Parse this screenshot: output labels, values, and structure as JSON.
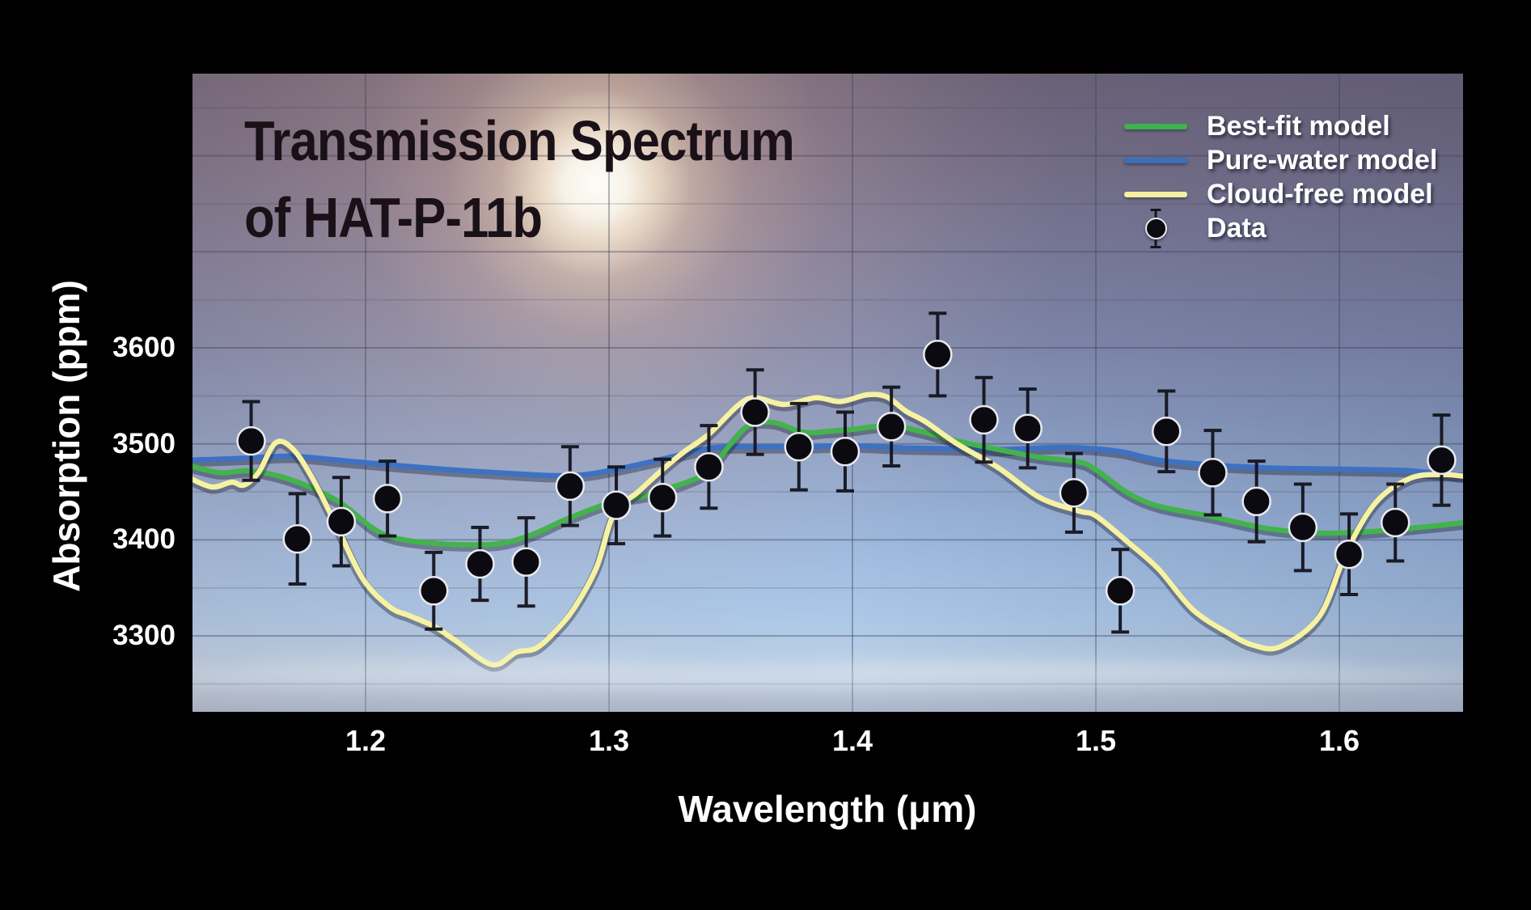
{
  "title": {
    "line1": "Transmission Spectrum",
    "line2": "of HAT-P-11b"
  },
  "legend": {
    "items": [
      {
        "label": "Best-fit model",
        "type": "line",
        "color": "#3fb24b"
      },
      {
        "label": "Pure-water model",
        "type": "line",
        "color": "#3c6fb5"
      },
      {
        "label": "Cloud-free model",
        "type": "line",
        "color": "#f4efa2"
      },
      {
        "label": "Data",
        "type": "marker",
        "color": "#0b0b10"
      }
    ]
  },
  "colors": {
    "grid": "#3c4258",
    "error_bar": "#14141f",
    "point_fill": "#0a0a10",
    "point_ring": "#e9e9ef",
    "best_fit": "#43b34c",
    "pure_water": "#3d71c4",
    "cloud_free": "#f7f2a2",
    "text_light": "#ffffff",
    "title_dark": "#1a1118"
  },
  "chart_data": {
    "type": "line",
    "title": "Transmission Spectrum of HAT-P-11b",
    "xlabel": "Wavelength (μm)",
    "ylabel": "Absorption (ppm)",
    "xlim": [
      1.128,
      1.652
    ],
    "ylim": [
      3220,
      3886
    ],
    "x_ticks": [
      1.2,
      1.3,
      1.4,
      1.5,
      1.6
    ],
    "y_ticks": [
      3600,
      3500,
      3400,
      3300
    ],
    "grid": "on, every 50 ppm horizontal (faint) and 0.1 um vertical",
    "legend_position": "upper right",
    "series": [
      {
        "name": "Pure-water model",
        "color_key": "pure_water",
        "points": [
          [
            1.128,
            3483
          ],
          [
            1.15,
            3485
          ],
          [
            1.17,
            3487
          ],
          [
            1.193,
            3482
          ],
          [
            1.215,
            3477
          ],
          [
            1.235,
            3473
          ],
          [
            1.254,
            3470
          ],
          [
            1.276,
            3467
          ],
          [
            1.29,
            3468
          ],
          [
            1.302,
            3473
          ],
          [
            1.315,
            3480
          ],
          [
            1.33,
            3489
          ],
          [
            1.343,
            3496
          ],
          [
            1.36,
            3497
          ],
          [
            1.38,
            3497
          ],
          [
            1.4,
            3498
          ],
          [
            1.42,
            3496
          ],
          [
            1.44,
            3495
          ],
          [
            1.46,
            3494
          ],
          [
            1.48,
            3496
          ],
          [
            1.493,
            3496
          ],
          [
            1.51,
            3492
          ],
          [
            1.526,
            3483
          ],
          [
            1.548,
            3478
          ],
          [
            1.57,
            3475
          ],
          [
            1.592,
            3474
          ],
          [
            1.615,
            3473
          ],
          [
            1.629,
            3472
          ],
          [
            1.642,
            3469
          ],
          [
            1.652,
            3467
          ]
        ]
      },
      {
        "name": "Best-fit model",
        "color_key": "best_fit",
        "points": [
          [
            1.128,
            3477
          ],
          [
            1.14,
            3470
          ],
          [
            1.152,
            3472
          ],
          [
            1.165,
            3466
          ],
          [
            1.178,
            3454
          ],
          [
            1.19,
            3438
          ],
          [
            1.203,
            3412
          ],
          [
            1.212,
            3402
          ],
          [
            1.225,
            3397
          ],
          [
            1.24,
            3395
          ],
          [
            1.255,
            3396
          ],
          [
            1.268,
            3405
          ],
          [
            1.283,
            3422
          ],
          [
            1.302,
            3440
          ],
          [
            1.315,
            3446
          ],
          [
            1.322,
            3452
          ],
          [
            1.332,
            3460
          ],
          [
            1.341,
            3472
          ],
          [
            1.35,
            3500
          ],
          [
            1.358,
            3520
          ],
          [
            1.368,
            3522
          ],
          [
            1.38,
            3512
          ],
          [
            1.39,
            3513
          ],
          [
            1.4,
            3515
          ],
          [
            1.415,
            3519
          ],
          [
            1.428,
            3513
          ],
          [
            1.443,
            3503
          ],
          [
            1.46,
            3494
          ],
          [
            1.477,
            3486
          ],
          [
            1.493,
            3481
          ],
          [
            1.5,
            3473
          ],
          [
            1.513,
            3449
          ],
          [
            1.526,
            3435
          ],
          [
            1.548,
            3424
          ],
          [
            1.57,
            3412
          ],
          [
            1.592,
            3407
          ],
          [
            1.615,
            3409
          ],
          [
            1.637,
            3414
          ],
          [
            1.652,
            3418
          ]
        ]
      },
      {
        "name": "Cloud-free model",
        "color_key": "cloud_free",
        "points": [
          [
            1.128,
            3464
          ],
          [
            1.137,
            3455
          ],
          [
            1.145,
            3460
          ],
          [
            1.15,
            3457
          ],
          [
            1.156,
            3470
          ],
          [
            1.163,
            3501
          ],
          [
            1.17,
            3495
          ],
          [
            1.178,
            3465
          ],
          [
            1.188,
            3415
          ],
          [
            1.199,
            3359
          ],
          [
            1.21,
            3330
          ],
          [
            1.218,
            3321
          ],
          [
            1.228,
            3310
          ],
          [
            1.237,
            3295
          ],
          [
            1.252,
            3270
          ],
          [
            1.262,
            3283
          ],
          [
            1.27,
            3287
          ],
          [
            1.278,
            3305
          ],
          [
            1.286,
            3330
          ],
          [
            1.295,
            3372
          ],
          [
            1.302,
            3427
          ],
          [
            1.312,
            3450
          ],
          [
            1.321,
            3471
          ],
          [
            1.331,
            3492
          ],
          [
            1.341,
            3510
          ],
          [
            1.353,
            3540
          ],
          [
            1.36,
            3548
          ],
          [
            1.372,
            3541
          ],
          [
            1.385,
            3548
          ],
          [
            1.395,
            3544
          ],
          [
            1.406,
            3551
          ],
          [
            1.414,
            3549
          ],
          [
            1.422,
            3534
          ],
          [
            1.43,
            3523
          ],
          [
            1.443,
            3500
          ],
          [
            1.46,
            3475
          ],
          [
            1.477,
            3444
          ],
          [
            1.493,
            3430
          ],
          [
            1.5,
            3425
          ],
          [
            1.513,
            3398
          ],
          [
            1.526,
            3369
          ],
          [
            1.54,
            3327
          ],
          [
            1.555,
            3302
          ],
          [
            1.565,
            3290
          ],
          [
            1.576,
            3289
          ],
          [
            1.592,
            3321
          ],
          [
            1.603,
            3388
          ],
          [
            1.615,
            3439
          ],
          [
            1.629,
            3464
          ],
          [
            1.642,
            3468
          ],
          [
            1.652,
            3466
          ]
        ]
      }
    ],
    "data_points": {
      "name": "Data",
      "x": [
        1.153,
        1.172,
        1.19,
        1.209,
        1.228,
        1.247,
        1.266,
        1.284,
        1.303,
        1.322,
        1.341,
        1.36,
        1.378,
        1.397,
        1.416,
        1.435,
        1.454,
        1.472,
        1.491,
        1.51,
        1.529,
        1.548,
        1.566,
        1.585,
        1.604,
        1.623,
        1.642
      ],
      "y": [
        3503,
        3401,
        3419,
        3443,
        3347,
        3375,
        3377,
        3456,
        3436,
        3444,
        3476,
        3533,
        3497,
        3492,
        3518,
        3593,
        3525,
        3516,
        3449,
        3347,
        3513,
        3470,
        3440,
        3413,
        3385,
        3418,
        3483
      ],
      "yerr": [
        41,
        47,
        46,
        39,
        40,
        38,
        46,
        41,
        40,
        40,
        43,
        44,
        45,
        41,
        41,
        43,
        44,
        41,
        41,
        43,
        42,
        44,
        42,
        45,
        42,
        40,
        47
      ]
    }
  },
  "axes": {
    "y_tick_labels": [
      "3600",
      "3500",
      "3400",
      "3300"
    ],
    "x_tick_labels": [
      "1.2",
      "1.3",
      "1.4",
      "1.5",
      "1.6"
    ],
    "y_title": "Absorption (ppm)",
    "x_title": "Wavelength (μm)"
  }
}
